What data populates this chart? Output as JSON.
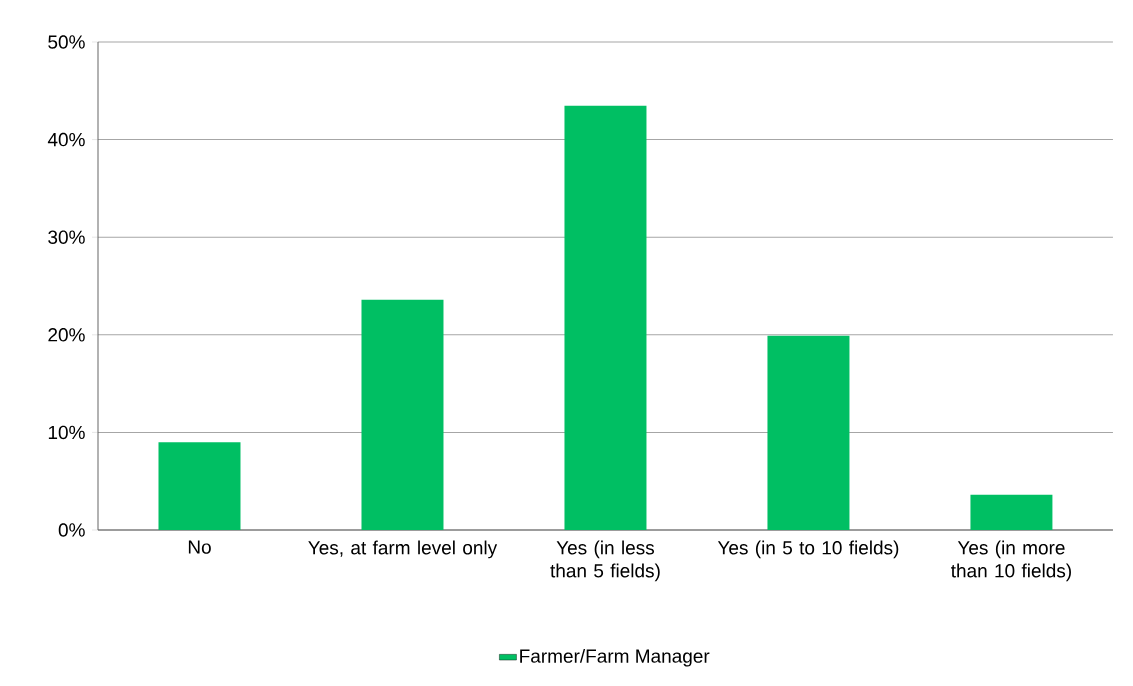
{
  "chart_data": {
    "type": "bar",
    "categories": [
      "No",
      "Yes, at farm level only",
      "Yes (in less than 5 fields)",
      "Yes (in 5 to 10 fields)",
      "Yes (in more than 10 fields)"
    ],
    "series": [
      {
        "name": "Farmer/Farm Manager",
        "color": "#00bf63",
        "values": [
          9.0,
          23.6,
          43.5,
          19.9,
          3.6
        ]
      }
    ],
    "ylim": [
      0,
      50
    ],
    "yticks": [
      {
        "value": 0,
        "label": "0%"
      },
      {
        "value": 10,
        "label": "10%"
      },
      {
        "value": 20,
        "label": "20%"
      },
      {
        "value": 30,
        "label": "30%"
      },
      {
        "value": 40,
        "label": "40%"
      },
      {
        "value": 50,
        "label": "50%"
      }
    ],
    "grid": "y",
    "legend": "bottom"
  }
}
